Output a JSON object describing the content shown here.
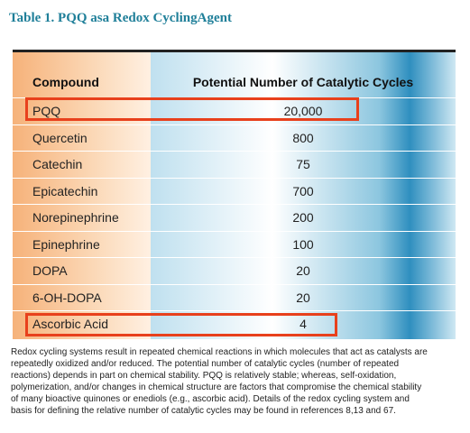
{
  "title": "Table 1. PQQ asa Redox CyclingAgent",
  "table": {
    "headers": [
      "Compound",
      "Potential Number of Catalytic Cycles"
    ],
    "rows": [
      [
        "PQQ",
        "20,000"
      ],
      [
        "Quercetin",
        "800"
      ],
      [
        "Catechin",
        "75"
      ],
      [
        "Epicatechin",
        "700"
      ],
      [
        "Norepinephrine",
        "200"
      ],
      [
        "Epinephrine",
        "100"
      ],
      [
        "DOPA",
        "20"
      ],
      [
        "6-OH-DOPA",
        "20"
      ],
      [
        "Ascorbic Acid",
        "4"
      ]
    ]
  },
  "caption": [
    "Redox cycling systems result in repeated chemical reactions in which molecules that act as catalysts are",
    "repeatedly oxidized and/or reduced.  The potential number of catalytic cycles (number of repeated",
    "reactions) depends in part on chemical stability.  PQQ is relatively stable; whereas, self-oxidation,",
    "polymerization, and/or changes in chemical structure are factors that compromise the chemical stability",
    "of many bioactive quinones or enediols (e.g., ascorbic acid).  Details of the redox cycling system and",
    "basis for defining the relative number of catalytic cycles may be found in references 8,13 and 67."
  ]
}
